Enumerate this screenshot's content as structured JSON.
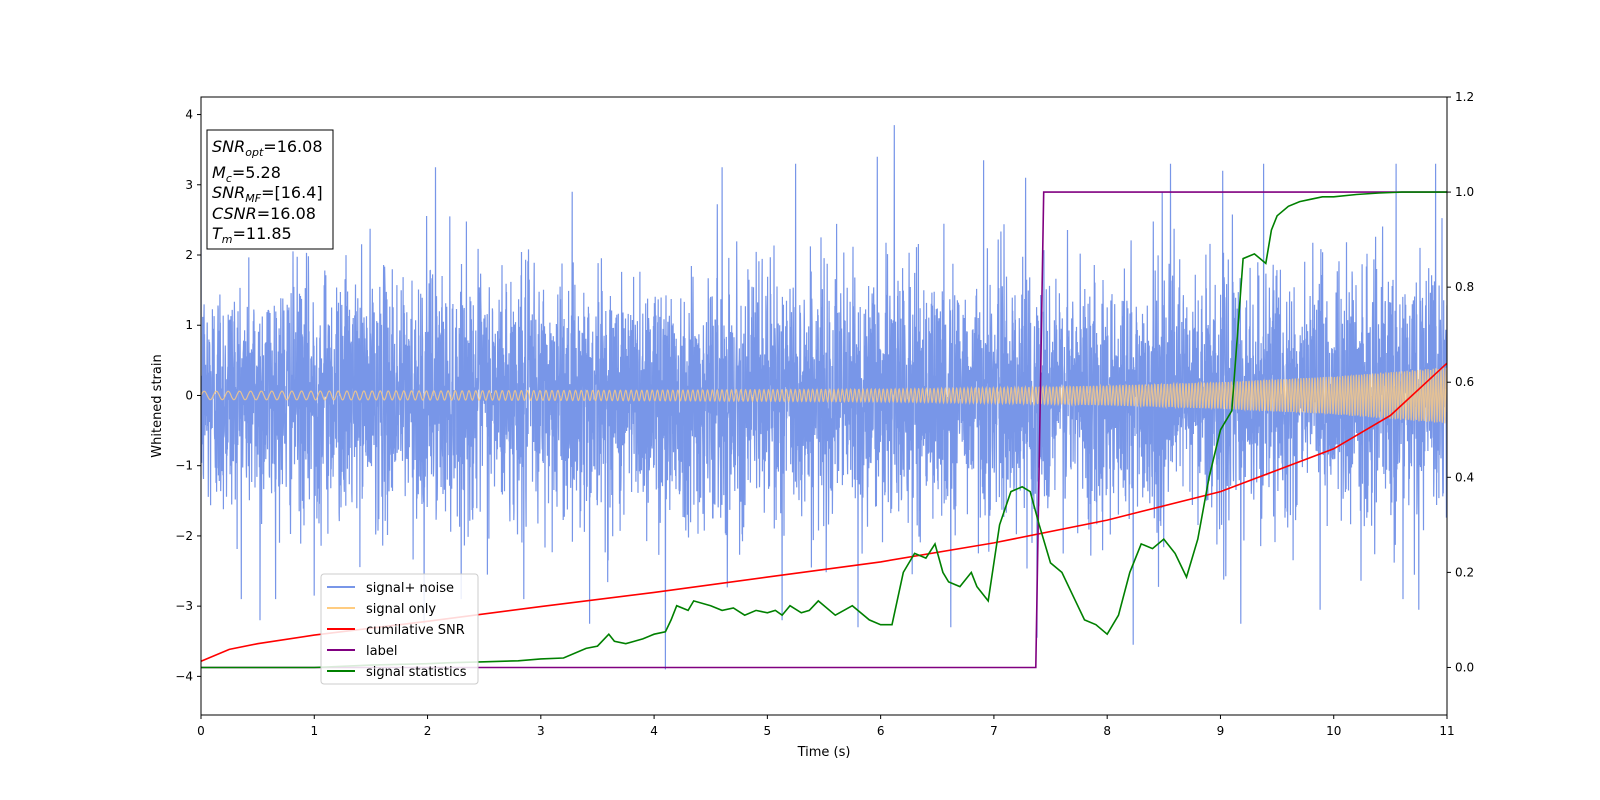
{
  "chart_data": {
    "type": "line",
    "xlabel": "Time (s)",
    "ylabel": "Whitened strain",
    "xlim": [
      0,
      11
    ],
    "ylim": [
      -4.55,
      4.25
    ],
    "y2lim": [
      -0.1,
      1.2
    ],
    "x_ticks": [
      0,
      1,
      2,
      3,
      4,
      5,
      6,
      7,
      8,
      9,
      10,
      11
    ],
    "y_ticks": [
      -4,
      -3,
      -2,
      -1,
      0,
      1,
      2,
      3,
      4
    ],
    "y2_ticks": [
      0.0,
      0.2,
      0.4,
      0.6,
      0.8,
      1.0,
      1.2
    ],
    "legend_position": "lower-left",
    "annotation": {
      "lines": [
        {
          "sym": "SNR",
          "sub": "opt",
          "text": "=16.08"
        },
        {
          "sym": "M",
          "sub": "c",
          "text": "=5.28"
        },
        {
          "sym": "SNR",
          "sub": "MF",
          "text": "=[16.4]"
        },
        {
          "sym": "CSNR",
          "sub": "",
          "text": "=16.08"
        },
        {
          "sym": "T",
          "sub": "m",
          "text": "=11.85"
        }
      ]
    },
    "series": [
      {
        "name": "signal+ noise",
        "color": "#7896e8",
        "axis": "left",
        "description_envelope": {
          "x": [
            0,
            11
          ],
          "typical_low": -1.9,
          "typical_high": 2.0
        },
        "spikes": [
          {
            "x": 0.52,
            "y": -3.2
          },
          {
            "x": 1.0,
            "y": -2.85
          },
          {
            "x": 1.97,
            "y": -3.25
          },
          {
            "x": 2.07,
            "y": 3.25
          },
          {
            "x": 2.85,
            "y": -2.9
          },
          {
            "x": 3.43,
            "y": -3.25
          },
          {
            "x": 4.1,
            "y": -3.9
          },
          {
            "x": 4.6,
            "y": 3.25
          },
          {
            "x": 5.13,
            "y": -3.2
          },
          {
            "x": 5.25,
            "y": 3.3
          },
          {
            "x": 5.8,
            "y": -3.3
          },
          {
            "x": 5.97,
            "y": 3.4
          },
          {
            "x": 6.12,
            "y": 3.85
          },
          {
            "x": 6.62,
            "y": -3.3
          },
          {
            "x": 6.91,
            "y": 3.35
          },
          {
            "x": 7.28,
            "y": 3.1
          },
          {
            "x": 7.38,
            "y": -3.45
          },
          {
            "x": 8.23,
            "y": -3.55
          },
          {
            "x": 8.56,
            "y": 3.3
          },
          {
            "x": 9.02,
            "y": 3.2
          },
          {
            "x": 9.18,
            "y": -3.25
          },
          {
            "x": 9.38,
            "y": 3.3
          },
          {
            "x": 9.88,
            "y": -3.05
          },
          {
            "x": 10.55,
            "y": 3.3
          },
          {
            "x": 10.75,
            "y": -3.05
          },
          {
            "x": 10.9,
            "y": 3.3
          }
        ]
      },
      {
        "name": "signal only",
        "color": "#ffcc80",
        "axis": "left",
        "amplitude_envelope": {
          "x": [
            0,
            2,
            4,
            6,
            7,
            8,
            9,
            10,
            11
          ],
          "amp": [
            0.06,
            0.065,
            0.075,
            0.09,
            0.11,
            0.14,
            0.19,
            0.27,
            0.4
          ]
        }
      },
      {
        "name": "cumilative SNR",
        "color": "#ff0000",
        "axis": "right",
        "x": [
          0,
          0.25,
          0.5,
          1,
          2,
          3,
          4,
          5,
          6,
          7,
          8,
          9,
          10,
          10.5,
          11
        ],
        "y": [
          0.013,
          0.038,
          0.05,
          0.068,
          0.097,
          0.128,
          0.158,
          0.19,
          0.222,
          0.262,
          0.31,
          0.37,
          0.46,
          0.53,
          0.64
        ]
      },
      {
        "name": "label",
        "color": "#800080",
        "axis": "right",
        "x": [
          0,
          7.37,
          7.44,
          11
        ],
        "y": [
          0,
          0,
          1,
          1
        ]
      },
      {
        "name": "signal statistics",
        "color": "#008000",
        "axis": "right",
        "x": [
          0,
          1,
          1.5,
          2,
          2.2,
          2.5,
          2.8,
          3.0,
          3.2,
          3.4,
          3.5,
          3.6,
          3.65,
          3.75,
          3.9,
          4.0,
          4.1,
          4.15,
          4.2,
          4.3,
          4.35,
          4.5,
          4.6,
          4.7,
          4.8,
          4.9,
          5.0,
          5.07,
          5.13,
          5.2,
          5.3,
          5.37,
          5.45,
          5.6,
          5.75,
          5.9,
          6.0,
          6.1,
          6.2,
          6.3,
          6.4,
          6.48,
          6.55,
          6.6,
          6.7,
          6.8,
          6.85,
          6.95,
          7.05,
          7.15,
          7.25,
          7.32,
          7.4,
          7.5,
          7.6,
          7.7,
          7.8,
          7.9,
          8.0,
          8.1,
          8.2,
          8.3,
          8.4,
          8.5,
          8.6,
          8.7,
          8.8,
          8.9,
          9.0,
          9.1,
          9.2,
          9.3,
          9.4,
          9.45,
          9.5,
          9.6,
          9.7,
          9.8,
          9.9,
          10.0,
          10.2,
          10.4,
          10.6,
          10.8,
          11.0
        ],
        "y": [
          0.0,
          0.0,
          0.005,
          0.008,
          0.01,
          0.012,
          0.014,
          0.018,
          0.02,
          0.04,
          0.045,
          0.07,
          0.055,
          0.05,
          0.06,
          0.07,
          0.075,
          0.1,
          0.13,
          0.12,
          0.14,
          0.13,
          0.12,
          0.125,
          0.11,
          0.12,
          0.115,
          0.12,
          0.11,
          0.13,
          0.115,
          0.12,
          0.14,
          0.11,
          0.13,
          0.1,
          0.09,
          0.09,
          0.2,
          0.24,
          0.23,
          0.26,
          0.2,
          0.18,
          0.17,
          0.2,
          0.17,
          0.14,
          0.3,
          0.37,
          0.38,
          0.37,
          0.3,
          0.22,
          0.2,
          0.15,
          0.1,
          0.09,
          0.07,
          0.11,
          0.2,
          0.26,
          0.25,
          0.27,
          0.24,
          0.19,
          0.27,
          0.4,
          0.5,
          0.54,
          0.86,
          0.87,
          0.85,
          0.92,
          0.95,
          0.97,
          0.98,
          0.985,
          0.99,
          0.99,
          0.995,
          0.998,
          1.0,
          1.0,
          1.0
        ]
      }
    ]
  }
}
